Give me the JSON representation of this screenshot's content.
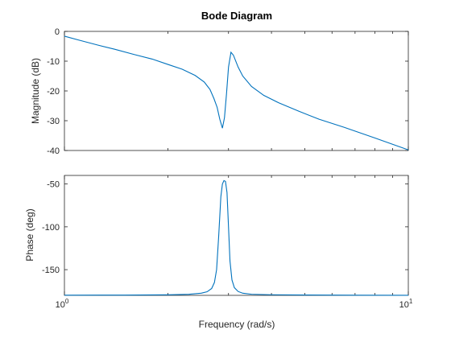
{
  "chart_data": {
    "type": "line",
    "title": "Bode Diagram",
    "xlabel": "Frequency (rad/s)",
    "x_scale": "log",
    "x_ticks": [
      {
        "base": "10",
        "exp": "0"
      },
      {
        "base": "10",
        "exp": "1"
      }
    ],
    "grid": false,
    "color": "#0072BD",
    "panels": [
      {
        "name": "magnitude",
        "ylabel": "Magnitude (dB)",
        "ylim": [
          -40,
          0
        ],
        "yticks": [
          "0",
          "-10",
          "-20",
          "-30",
          "-40"
        ],
        "series": [
          {
            "x": [
              1.0,
              1.1,
              1.25,
              1.4,
              1.6,
              1.8,
              2.0,
              2.2,
              2.4,
              2.55,
              2.65,
              2.72,
              2.78,
              2.83,
              2.88,
              2.92,
              2.96,
              3.0,
              3.05,
              3.1,
              3.2,
              3.3,
              3.5,
              3.8,
              4.2,
              4.8,
              5.5,
              6.5,
              8.0,
              10.0
            ],
            "y": [
              -1.6,
              -2.9,
              -4.6,
              -6.0,
              -7.8,
              -9.3,
              -11.1,
              -12.7,
              -14.8,
              -17.0,
              -19.5,
              -22.5,
              -25.5,
              -29.5,
              -32.5,
              -29.0,
              -21.0,
              -12.0,
              -7.0,
              -8.0,
              -12.0,
              -15.0,
              -18.5,
              -21.5,
              -24.0,
              -26.8,
              -29.5,
              -32.2,
              -35.8,
              -39.8
            ]
          }
        ]
      },
      {
        "name": "phase",
        "ylabel": "Phase (deg)",
        "ylim": [
          -180,
          -40
        ],
        "yticks": [
          "-50",
          "-100",
          "-150"
        ],
        "series": [
          {
            "x": [
              1.0,
              1.5,
              2.0,
              2.3,
              2.5,
              2.6,
              2.68,
              2.73,
              2.77,
              2.81,
              2.85,
              2.88,
              2.91,
              2.94,
              2.97,
              3.0,
              3.03,
              3.07,
              3.12,
              3.2,
              3.3,
              3.5,
              4.0,
              5.0,
              7.0,
              10.0
            ],
            "y": [
              -179.8,
              -179.7,
              -179.4,
              -178.8,
              -177.5,
              -175.8,
              -172.0,
              -165.0,
              -150.0,
              -110.0,
              -65.0,
              -50.0,
              -46.0,
              -47.0,
              -60.0,
              -100.0,
              -140.0,
              -162.0,
              -171.0,
              -175.5,
              -177.5,
              -178.7,
              -179.3,
              -179.6,
              -179.8,
              -179.9
            ]
          }
        ]
      }
    ]
  }
}
